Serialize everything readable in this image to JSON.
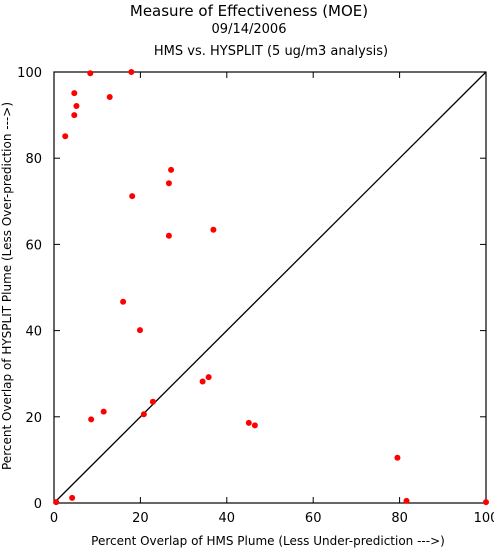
{
  "chart_data": {
    "type": "scatter",
    "title": "Measure of Effectiveness (MOE)",
    "subtitle_date": "09/14/2006",
    "subtitle": "HMS vs. HYSPLIT  (5 ug/m3 analysis)",
    "xlabel": "Percent Overlap of HMS Plume (Less Under-prediction --->)",
    "ylabel": "Percent Overlap of HYSPLIT Plume (Less Over-prediction --->)",
    "xlim": [
      0,
      100
    ],
    "ylim": [
      0,
      100
    ],
    "xticks": [
      0,
      20,
      40,
      60,
      80,
      100
    ],
    "yticks": [
      0,
      20,
      40,
      60,
      80,
      100
    ],
    "grid": false,
    "reference_line": "y = x",
    "marker_color": "#ff0000",
    "line_color": "#000000",
    "points": [
      {
        "x": 8.4,
        "y": 99.7
      },
      {
        "x": 17.9,
        "y": 100.0
      },
      {
        "x": 4.7,
        "y": 95.1
      },
      {
        "x": 12.9,
        "y": 94.2
      },
      {
        "x": 5.2,
        "y": 92.1
      },
      {
        "x": 4.7,
        "y": 90.0
      },
      {
        "x": 2.6,
        "y": 85.1
      },
      {
        "x": 27.1,
        "y": 77.3
      },
      {
        "x": 26.6,
        "y": 74.2
      },
      {
        "x": 18.1,
        "y": 71.2
      },
      {
        "x": 36.9,
        "y": 63.4
      },
      {
        "x": 26.6,
        "y": 62.0
      },
      {
        "x": 16.0,
        "y": 46.7
      },
      {
        "x": 19.9,
        "y": 40.1
      },
      {
        "x": 35.8,
        "y": 29.2
      },
      {
        "x": 34.4,
        "y": 28.2
      },
      {
        "x": 22.9,
        "y": 23.5
      },
      {
        "x": 11.5,
        "y": 21.2
      },
      {
        "x": 20.8,
        "y": 20.6
      },
      {
        "x": 8.6,
        "y": 19.4
      },
      {
        "x": 45.1,
        "y": 18.6
      },
      {
        "x": 46.5,
        "y": 18.0
      },
      {
        "x": 79.5,
        "y": 10.5
      },
      {
        "x": 4.2,
        "y": 1.2
      },
      {
        "x": 81.6,
        "y": 0.5
      },
      {
        "x": 0.5,
        "y": 0.2
      },
      {
        "x": 100.0,
        "y": 0.2
      }
    ]
  }
}
